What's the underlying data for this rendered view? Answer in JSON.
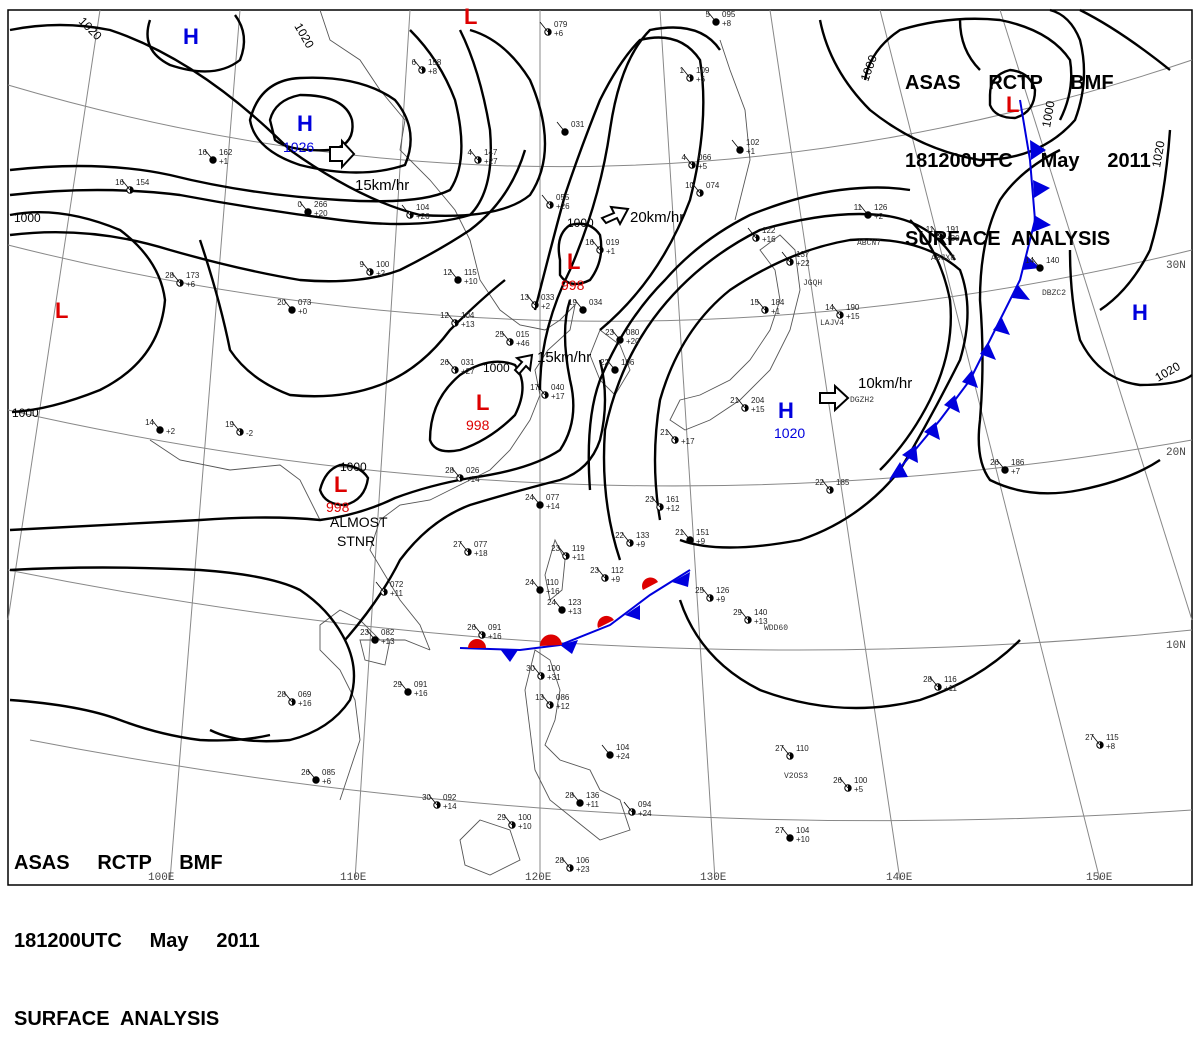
{
  "title_blocks": {
    "top": {
      "agency_line": "ASAS     RCTP     BMF",
      "time_line": "181200UTC     May     2011",
      "product_line": "SURFACE  ANALYSIS"
    },
    "bottom": {
      "agency_line": "ASAS     RCTP     BMF",
      "time_line": "181200UTC     May     2011",
      "product_line": "SURFACE  ANALYSIS"
    }
  },
  "longitude_labels": [
    "100E",
    "110E",
    "120E",
    "130E",
    "140E",
    "150E"
  ],
  "latitude_labels": [
    "30N",
    "20N",
    "10N"
  ],
  "pressure_centers": [
    {
      "type": "H",
      "value": "",
      "color": "#0000dd"
    },
    {
      "type": "H",
      "value": "1026",
      "color": "#0000dd"
    },
    {
      "type": "L",
      "value": "",
      "color": "#dd0000"
    },
    {
      "type": "L",
      "value": "",
      "color": "#dd0000"
    },
    {
      "type": "L",
      "value": "998",
      "color": "#dd0000"
    },
    {
      "type": "L",
      "value": "998",
      "color": "#dd0000"
    },
    {
      "type": "L",
      "value": "998",
      "color": "#dd0000"
    },
    {
      "type": "L",
      "value": "",
      "color": "#dd0000"
    },
    {
      "type": "H",
      "value": "1020",
      "color": "#0000dd"
    },
    {
      "type": "H",
      "value": "",
      "color": "#0000dd"
    }
  ],
  "isobar_labels": [
    "1020",
    "1020",
    "1000",
    "1000",
    "1000",
    "1000",
    "1000",
    "1000",
    "1000",
    "1020"
  ],
  "motion_labels": [
    "15km/hr",
    "20km/hr",
    "15km/hr",
    "10km/hr"
  ],
  "annotations": {
    "stationary_note_1": "ALMOST",
    "stationary_note_2": "STNR"
  },
  "ship_ids": [
    "ABCN7",
    "JGQH",
    "LAJV4",
    "DGZH2",
    "ABJX8",
    "DBZC2",
    "WDD60",
    "V2OS3"
  ],
  "station_plots": [
    {
      "t": "16",
      "p": "162",
      "d": "+1"
    },
    {
      "t": "6",
      "p": "158",
      "d": "+8"
    },
    {
      "t": "",
      "p": "079",
      "d": "+6"
    },
    {
      "t": "5",
      "p": "095",
      "d": "+8"
    },
    {
      "t": "16",
      "p": "154",
      "d": ""
    },
    {
      "t": "4",
      "p": "147",
      "d": "+27"
    },
    {
      "t": "",
      "p": "031",
      "d": ""
    },
    {
      "t": "1",
      "p": "109",
      "d": "+6"
    },
    {
      "t": "4",
      "p": "066",
      "d": "+5"
    },
    {
      "t": "",
      "p": "102",
      "d": "+1"
    },
    {
      "t": "",
      "p": "055",
      "d": "+26"
    },
    {
      "t": "10",
      "p": "074",
      "d": ""
    },
    {
      "t": "0",
      "p": "266",
      "d": "+20"
    },
    {
      "t": "",
      "p": "104",
      "d": "+26"
    },
    {
      "t": "",
      "p": "122",
      "d": "+16"
    },
    {
      "t": "11",
      "p": "126",
      "d": "+2"
    },
    {
      "t": "11",
      "p": "191",
      "d": "+30"
    },
    {
      "t": "9",
      "p": "100",
      "d": "+2"
    },
    {
      "t": "12",
      "p": "115",
      "d": "+10"
    },
    {
      "t": "16",
      "p": "019",
      "d": "+1"
    },
    {
      "t": "",
      "p": "137",
      "d": "+22"
    },
    {
      "t": "14",
      "p": "140",
      "d": ""
    },
    {
      "t": "28",
      "p": "173",
      "d": "+6"
    },
    {
      "t": "13",
      "p": "033",
      "d": "+2"
    },
    {
      "t": "19",
      "p": "034",
      "d": ""
    },
    {
      "t": "15",
      "p": "184",
      "d": "+1"
    },
    {
      "t": "14",
      "p": "190",
      "d": "+15"
    },
    {
      "t": "20",
      "p": "073",
      "d": "+0"
    },
    {
      "t": "12",
      "p": "104",
      "d": "+13"
    },
    {
      "t": "25",
      "p": "015",
      "d": "+46"
    },
    {
      "t": "23",
      "p": "080",
      "d": "+20"
    },
    {
      "t": "26",
      "p": "031",
      "d": "+27"
    },
    {
      "t": "17",
      "p": "040",
      "d": "+17"
    },
    {
      "t": "22",
      "p": "106",
      "d": ""
    },
    {
      "t": "21",
      "p": "204",
      "d": "+15"
    },
    {
      "t": "19",
      "p": "",
      "d": "-2"
    },
    {
      "t": "14",
      "p": "",
      "d": "+2"
    },
    {
      "t": "21",
      "p": "",
      "d": "+17"
    },
    {
      "t": "28",
      "p": "026",
      "d": "+14"
    },
    {
      "t": "24",
      "p": "077",
      "d": "+14"
    },
    {
      "t": "23",
      "p": "161",
      "d": "+12"
    },
    {
      "t": "22",
      "p": "185",
      "d": ""
    },
    {
      "t": "26",
      "p": "186",
      "d": "+7"
    },
    {
      "t": "27",
      "p": "077",
      "d": "+18"
    },
    {
      "t": "22",
      "p": "133",
      "d": "+9"
    },
    {
      "t": "21",
      "p": "151",
      "d": "+9"
    },
    {
      "t": "23",
      "p": "119",
      "d": "+11"
    },
    {
      "t": "23",
      "p": "112",
      "d": "+9"
    },
    {
      "t": "24",
      "p": "110",
      "d": "+16"
    },
    {
      "t": "25",
      "p": "126",
      "d": "+9"
    },
    {
      "t": "",
      "p": "072",
      "d": "+11"
    },
    {
      "t": "24",
      "p": "123",
      "d": "+13"
    },
    {
      "t": "29",
      "p": "140",
      "d": "+13"
    },
    {
      "t": "26",
      "p": "091",
      "d": "+16"
    },
    {
      "t": "23",
      "p": "082",
      "d": "+13"
    },
    {
      "t": "30",
      "p": "100",
      "d": "+31"
    },
    {
      "t": "28",
      "p": "116",
      "d": "+11"
    },
    {
      "t": "29",
      "p": "091",
      "d": "+16"
    },
    {
      "t": "13",
      "p": "086",
      "d": "+12"
    },
    {
      "t": "28",
      "p": "069",
      "d": "+16"
    },
    {
      "t": "",
      "p": "104",
      "d": "+24"
    },
    {
      "t": "27",
      "p": "110",
      "d": ""
    },
    {
      "t": "27",
      "p": "115",
      "d": "+8"
    },
    {
      "t": "26",
      "p": "085",
      "d": "+6"
    },
    {
      "t": "26",
      "p": "100",
      "d": "+5"
    },
    {
      "t": "30",
      "p": "092",
      "d": "+14"
    },
    {
      "t": "28",
      "p": "136",
      "d": "+11"
    },
    {
      "t": "",
      "p": "094",
      "d": "+24"
    },
    {
      "t": "29",
      "p": "100",
      "d": "+10"
    },
    {
      "t": "27",
      "p": "104",
      "d": "+10"
    },
    {
      "t": "28",
      "p": "106",
      "d": "+23"
    }
  ]
}
